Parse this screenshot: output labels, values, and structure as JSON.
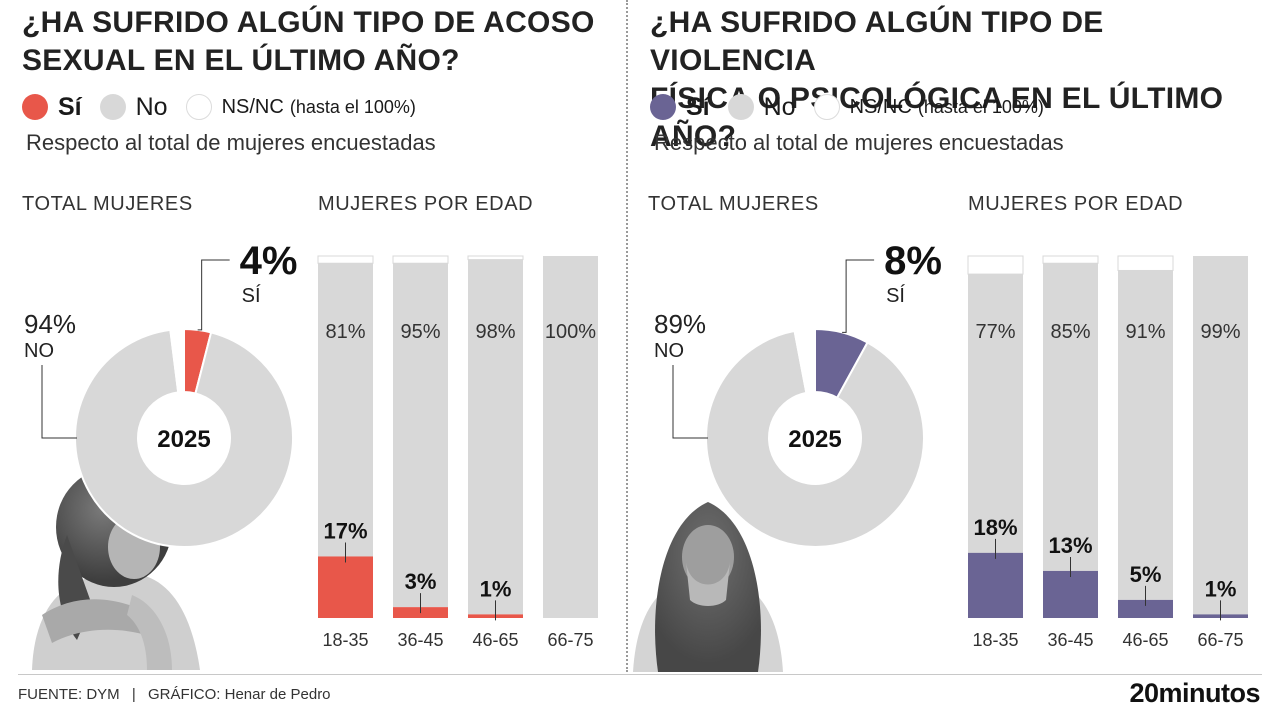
{
  "colors": {
    "si_left": "#e8574a",
    "si_right": "#6a6494",
    "no": "#d8d8d8",
    "nsnc": "#ffffff"
  },
  "panels": [
    {
      "title_line1": "¿HA SUFRIDO ALGÚN TIPO DE ACOSO",
      "title_line2": "SEXUAL EN EL ÚLTIMO AÑO?",
      "legend": {
        "si": "Sí",
        "no": "No",
        "nsnc": "NS/NC",
        "nsnc_note": "(hasta el 100%)"
      },
      "subtitle": "Respecto al total de mujeres encuestadas",
      "total_header": "TOTAL MUJERES",
      "age_header": "MUJERES POR EDAD"
    },
    {
      "title_line1": "¿HA SUFRIDO ALGÚN TIPO DE VIOLENCIA",
      "title_line2": "FÍSICA O PSICOLÓGICA EN EL ÚLTIMO AÑO?",
      "legend": {
        "si": "Sí",
        "no": "No",
        "nsnc": "NS/NC",
        "nsnc_note": "(hasta el 100%)"
      },
      "subtitle": "Respecto al total de mujeres encuestadas",
      "total_header": "TOTAL MUJERES",
      "age_header": "MUJERES POR EDAD"
    }
  ],
  "chart_data": [
    {
      "type": "pie",
      "title": "TOTAL MUJERES",
      "center_label": "2025",
      "labels": [
        "SÍ",
        "NO",
        "NS/NC"
      ],
      "values": [
        4,
        94,
        2
      ],
      "label_texts": {
        "si_value": "4%",
        "si_label": "SÍ",
        "no_value": "94%",
        "no_label": "NO"
      }
    },
    {
      "type": "bar",
      "title": "MUJERES POR EDAD",
      "categories": [
        "18-35",
        "36-45",
        "46-65",
        "66-75"
      ],
      "series": [
        {
          "name": "Sí",
          "values": [
            17,
            3,
            1,
            0
          ]
        },
        {
          "name": "No",
          "values": [
            81,
            95,
            98,
            100
          ]
        },
        {
          "name": "NS/NC",
          "values": [
            2,
            2,
            1,
            0
          ]
        }
      ],
      "data_labels": {
        "si": [
          "17%",
          "3%",
          "1%",
          null
        ],
        "no": [
          "81%",
          "95%",
          "98%",
          "100%"
        ]
      },
      "ylim": [
        0,
        100
      ]
    },
    {
      "type": "pie",
      "title": "TOTAL MUJERES",
      "center_label": "2025",
      "labels": [
        "SÍ",
        "NO",
        "NS/NC"
      ],
      "values": [
        8,
        89,
        3
      ],
      "label_texts": {
        "si_value": "8%",
        "si_label": "SÍ",
        "no_value": "89%",
        "no_label": "NO"
      }
    },
    {
      "type": "bar",
      "title": "MUJERES POR EDAD",
      "categories": [
        "18-35",
        "36-45",
        "46-65",
        "66-75"
      ],
      "series": [
        {
          "name": "Sí",
          "values": [
            18,
            13,
            5,
            1
          ]
        },
        {
          "name": "No",
          "values": [
            77,
            85,
            91,
            99
          ]
        },
        {
          "name": "NS/NC",
          "values": [
            5,
            2,
            4,
            0
          ]
        }
      ],
      "data_labels": {
        "si": [
          "18%",
          "13%",
          "5%",
          "1%"
        ],
        "no": [
          "77%",
          "85%",
          "91%",
          "99%"
        ]
      },
      "ylim": [
        0,
        100
      ]
    }
  ],
  "footer": {
    "source_label": "FUENTE:",
    "source": "DYM",
    "graphic_label": "GRÁFICO:",
    "author": "Henar de Pedro",
    "separator": "|"
  },
  "brand": "20minutos"
}
